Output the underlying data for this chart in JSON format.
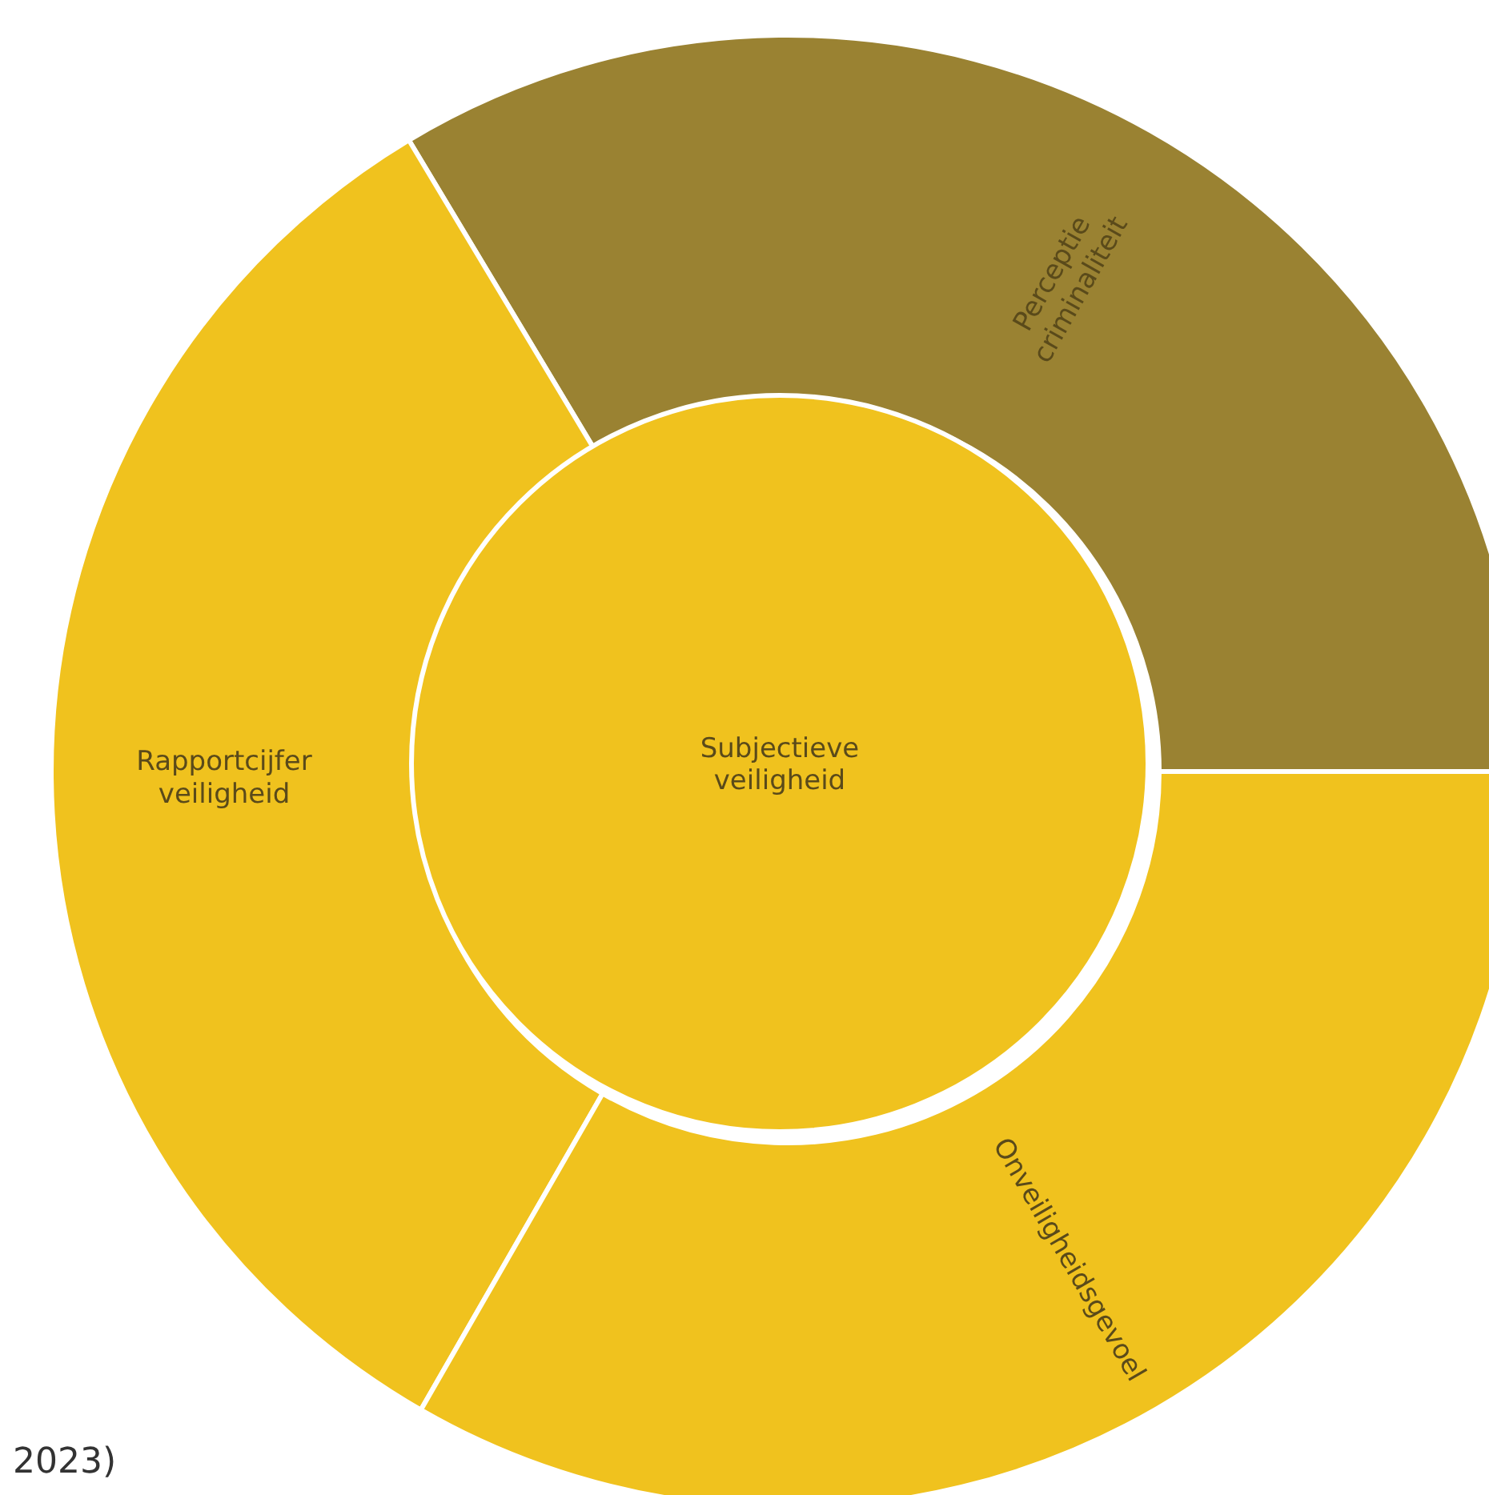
{
  "chart_data": {
    "type": "donut",
    "title": "Subjectieve veiligheid",
    "categories": [
      "Perceptie criminaliteit",
      "Rapportcijfer veiligheid",
      "Onveiligheidsgevoel"
    ],
    "values": [
      33.6,
      33.1,
      33.3
    ],
    "colors": [
      "#9a8232",
      "#f0c21e",
      "#f0c21e"
    ],
    "annotations": [
      "2023)"
    ]
  }
}
